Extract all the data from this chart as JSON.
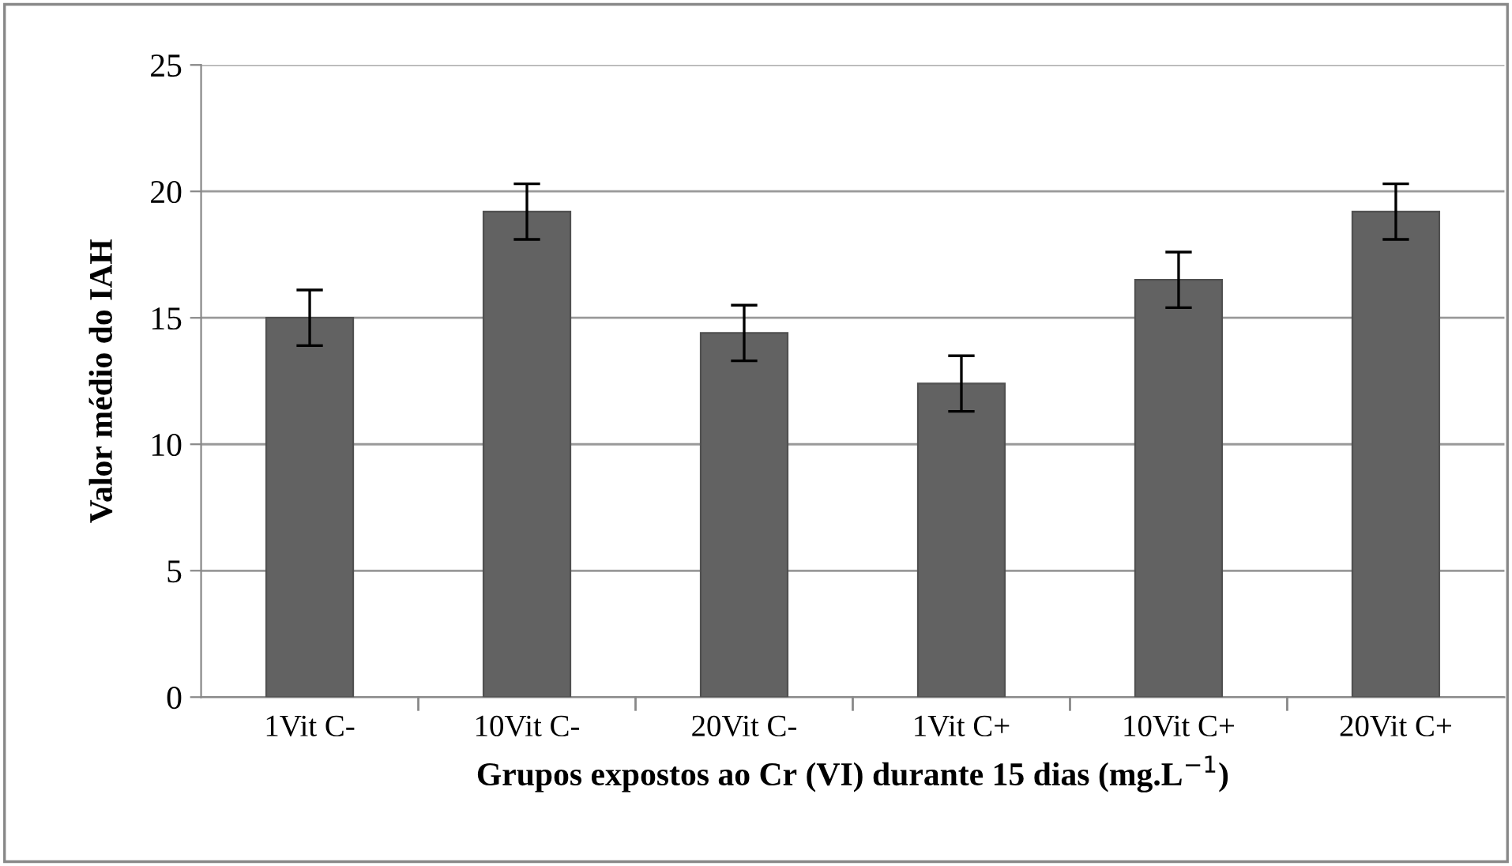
{
  "chart_data": {
    "type": "bar",
    "xlabel": "Grupos expostos ao Cr (VI) durante 15 dias (mg.L$^{−1}$)",
    "ylabel": "Valor médio do IAH",
    "categories": [
      "1Vit C-",
      "10Vit C-",
      "20Vit C-",
      "1Vit C+",
      "10Vit C+",
      "20Vit C+"
    ],
    "values": [
      15.0,
      19.2,
      14.4,
      12.4,
      16.5,
      19.2
    ],
    "errors": [
      1.1,
      1.1,
      1.1,
      1.1,
      1.1,
      1.1
    ],
    "color": "#626262",
    "ylim": [
      0,
      25
    ],
    "yticks": [
      0,
      5,
      10,
      15,
      20,
      25
    ],
    "grid": "y"
  }
}
